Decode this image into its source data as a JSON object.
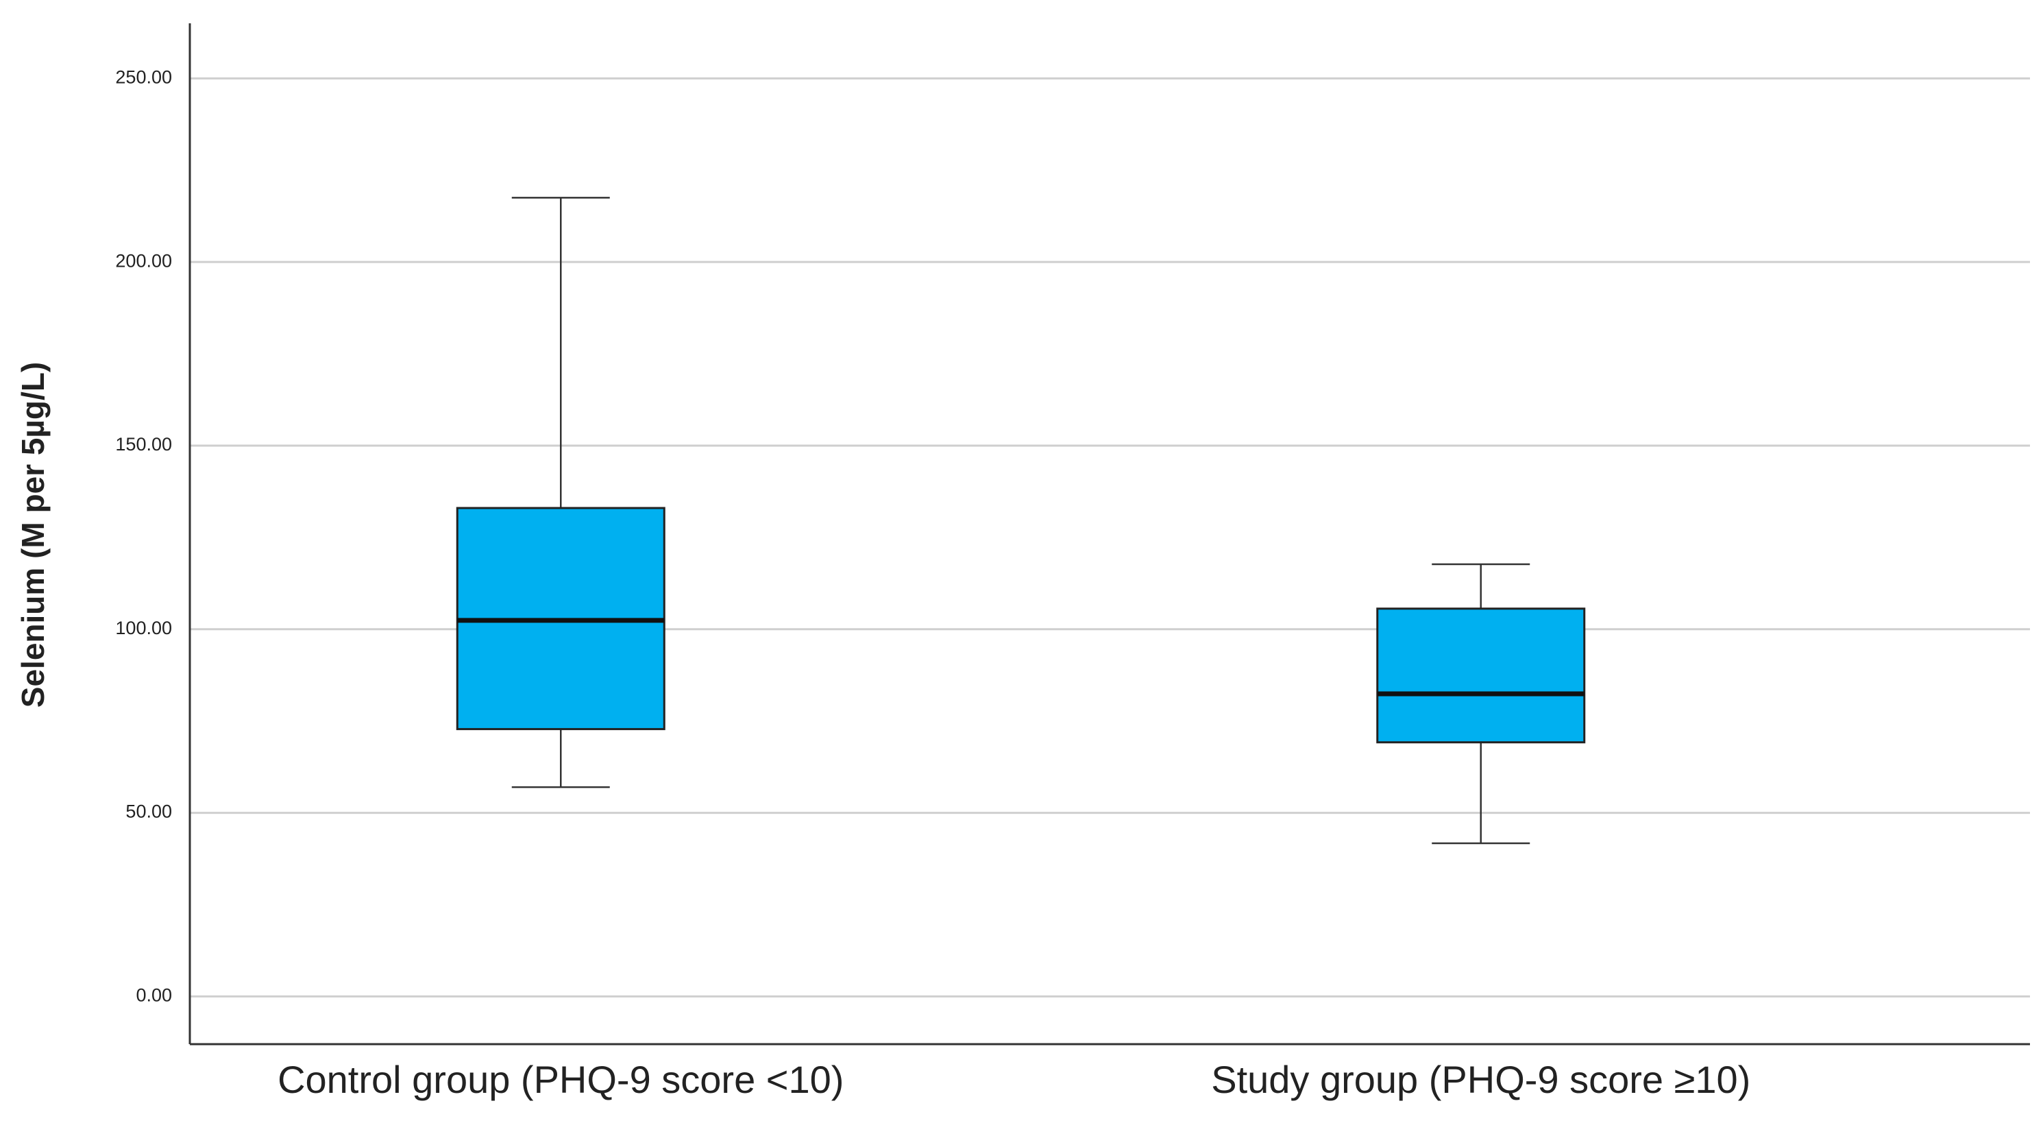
{
  "chart_data": {
    "type": "box",
    "y_label": "Selenium (M per 5µg/L)",
    "categories": [
      "Control group (PHQ-9 score <10)",
      "Study group  (PHQ-9 score ≥10)"
    ],
    "min": [
      57,
      41.7
    ],
    "q1": [
      72.8,
      69.2
    ],
    "median": [
      102.4,
      82.4
    ],
    "q3": [
      133,
      105.6
    ],
    "max": [
      217.5,
      117.7
    ],
    "color": "#00b0f0",
    "ylim": [
      -13,
      265
    ],
    "yticks": [
      {
        "value": 0,
        "label": "0.00"
      },
      {
        "value": 50,
        "label": "50.00"
      },
      {
        "value": 100,
        "label": "100.00"
      },
      {
        "value": 150,
        "label": "150.00"
      },
      {
        "value": 200,
        "label": "200.00"
      },
      {
        "value": 250,
        "label": "250.00"
      }
    ],
    "grid": true
  }
}
